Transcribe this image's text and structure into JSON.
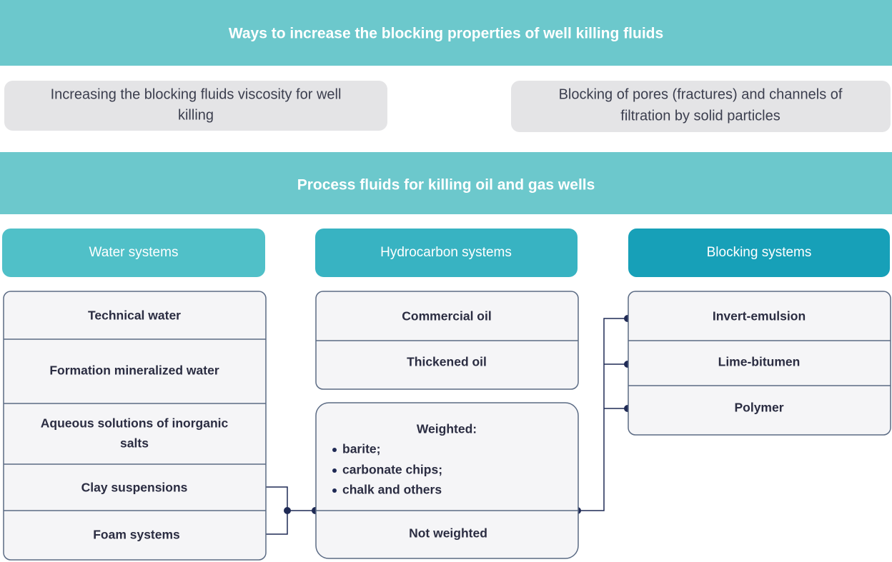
{
  "header": {
    "title": "Ways to increase the blocking properties of well killing fluids"
  },
  "methods": [
    {
      "lines": [
        "Increasing the blocking fluids viscosity  for well",
        "killing"
      ]
    },
    {
      "lines": [
        "Blocking of pores (fractures) and channels of",
        "filtration by solid particles"
      ]
    }
  ],
  "process": {
    "title": "Process fluids for killing oil and gas wells"
  },
  "columns": [
    {
      "title": "Water systems",
      "items": [
        {
          "lines": [
            "Technical water"
          ]
        },
        {
          "lines": [
            "Formation mineralized water"
          ]
        },
        {
          "lines": [
            "Aqueous solutions of inorganic",
            "salts"
          ]
        },
        {
          "lines": [
            "Clay suspensions"
          ]
        },
        {
          "lines": [
            "Foam systems"
          ]
        }
      ]
    },
    {
      "title": "Hydrocarbon systems",
      "items": [
        {
          "lines": [
            "Commercial oil"
          ]
        },
        {
          "lines": [
            "Thickened oil"
          ]
        }
      ],
      "weighted": {
        "title": "Weighted:",
        "bullets": [
          "barite;",
          "carbonate chips;",
          "chalk and others"
        ]
      },
      "not_weighted": "Not weighted"
    },
    {
      "title": "Blocking systems",
      "items": [
        {
          "lines": [
            "Invert-emulsion"
          ]
        },
        {
          "lines": [
            "Lime-bitumen"
          ]
        },
        {
          "lines": [
            "Polymer"
          ]
        }
      ]
    }
  ]
}
